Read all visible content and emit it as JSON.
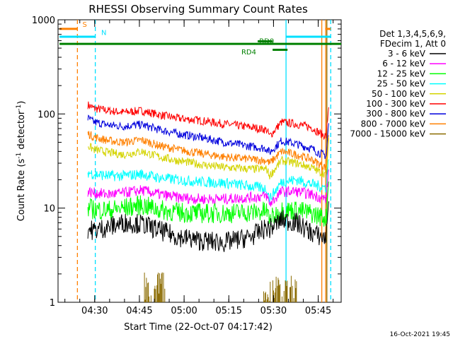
{
  "chart_data": {
    "type": "line",
    "title": "RHESSI Observing Summary Count Rates",
    "xlabel": "Start Time (22-Oct-07 04:17:42)",
    "ylabel_main": "Count Rate (s",
    "ylabel_sup1": "-1",
    "ylabel_mid": " detector",
    "ylabel_sup2": "-1",
    "ylabel_end": ")",
    "y_scale": "log",
    "ylim": [
      1,
      1000
    ],
    "xlim_minutes": [
      0,
      95
    ],
    "x_ticks": [
      {
        "minute": 12.3,
        "label": "04:30"
      },
      {
        "minute": 27.3,
        "label": "04:45"
      },
      {
        "minute": 42.3,
        "label": "05:00"
      },
      {
        "minute": 57.3,
        "label": "05:15"
      },
      {
        "minute": 72.3,
        "label": "05:30"
      },
      {
        "minute": 87.3,
        "label": "05:45"
      }
    ],
    "y_ticks": [
      {
        "value": 1,
        "label": "1"
      },
      {
        "value": 10,
        "label": "10"
      },
      {
        "value": 100,
        "label": "100"
      },
      {
        "value": 1000,
        "label": "1000"
      }
    ],
    "legend": {
      "placement": "right",
      "header1": "Det 1,3,4,5,6,9,",
      "header2": "FDecim 1, Att 0",
      "entries": [
        {
          "label": "3 - 6 keV",
          "color": "#000000"
        },
        {
          "label": "6 - 12 keV",
          "color": "#ff00ff"
        },
        {
          "label": "12 - 25 keV",
          "color": "#00ff00"
        },
        {
          "label": "25 - 50 keV",
          "color": "#00ffff"
        },
        {
          "label": "50 - 100 keV",
          "color": "#d4d400"
        },
        {
          "label": "100 - 300 keV",
          "color": "#ff0000"
        },
        {
          "label": "300 - 800 keV",
          "color": "#0000dd"
        },
        {
          "label": "800 - 7000 keV",
          "color": "#ff8000"
        },
        {
          "label": "7000 - 15000 keV",
          "color": "#8b6b00"
        }
      ]
    },
    "series": [
      {
        "color": "#ff0000",
        "x": [
          10,
          12,
          17,
          22,
          28,
          34,
          40,
          48,
          56,
          65,
          70,
          71,
          75,
          80,
          85,
          88,
          90,
          91
        ],
        "y": [
          125,
          115,
          108,
          104,
          108,
          98,
          90,
          85,
          78,
          72,
          68,
          58,
          82,
          78,
          72,
          62,
          58,
          145
        ]
      },
      {
        "color": "#0000dd",
        "x": [
          10,
          12,
          17,
          22,
          28,
          34,
          40,
          48,
          56,
          65,
          70,
          71,
          75,
          80,
          85,
          88,
          90,
          91
        ],
        "y": [
          90,
          82,
          76,
          74,
          77,
          68,
          62,
          56,
          50,
          45,
          43,
          39,
          52,
          48,
          43,
          38,
          36,
          95
        ]
      },
      {
        "color": "#ff8000",
        "x": [
          10,
          12,
          17,
          22,
          28,
          34,
          40,
          48,
          56,
          65,
          70,
          71,
          75,
          80,
          85,
          88,
          90,
          91
        ],
        "y": [
          62,
          57,
          52,
          50,
          53,
          46,
          42,
          38,
          35,
          33,
          32,
          30,
          40,
          37,
          33,
          29,
          27,
          75
        ]
      },
      {
        "color": "#d4d400",
        "x": [
          10,
          12,
          17,
          22,
          28,
          34,
          40,
          48,
          56,
          65,
          70,
          71,
          75,
          80,
          85,
          88,
          90,
          91
        ],
        "y": [
          46,
          42,
          39,
          37,
          40,
          35,
          32,
          29,
          27,
          26,
          26,
          22,
          32,
          30,
          27,
          24,
          23,
          60
        ]
      },
      {
        "color": "#00ffff",
        "x": [
          10,
          12,
          17,
          22,
          28,
          34,
          40,
          48,
          56,
          65,
          70,
          71,
          75,
          80,
          85,
          88,
          90,
          91
        ],
        "y": [
          24,
          23,
          22,
          22,
          23,
          21,
          20,
          19,
          18.5,
          17,
          16,
          12.5,
          19,
          20,
          18,
          17,
          16.5,
          40
        ]
      },
      {
        "color": "#ff00ff",
        "x": [
          10,
          12,
          17,
          22,
          28,
          34,
          40,
          48,
          56,
          65,
          70,
          71,
          75,
          80,
          85,
          88,
          90,
          91
        ],
        "y": [
          15,
          14.5,
          14,
          14.5,
          15.5,
          14,
          13,
          12.5,
          12.5,
          13,
          13.5,
          11,
          15,
          15,
          14,
          13,
          12.5,
          30
        ]
      },
      {
        "color": "#00ff00",
        "x": [
          10,
          12,
          17,
          22,
          28,
          34,
          40,
          48,
          56,
          65,
          70,
          71,
          75,
          80,
          85,
          88,
          90,
          91
        ],
        "y": [
          10,
          9.7,
          9.5,
          10,
          10.8,
          9.6,
          9,
          8.8,
          8.8,
          9,
          9.3,
          7.5,
          9.5,
          9.5,
          8.8,
          8.2,
          7.8,
          24
        ]
      },
      {
        "color": "#000000",
        "x": [
          10,
          12,
          17,
          22,
          28,
          34,
          40,
          48,
          56,
          65,
          70,
          71,
          75,
          80,
          85,
          88,
          90,
          91
        ],
        "y": [
          6,
          5.8,
          6.3,
          7,
          6.8,
          5.8,
          5,
          4.5,
          4.3,
          5,
          6.2,
          6,
          7.5,
          7,
          5.5,
          5,
          4.8,
          18
        ]
      }
    ],
    "noise_amplitude": 0.045,
    "data_gap_minutes": [
      12.5,
      70.5
    ],
    "brown_bursts": [
      [
        29,
        36
      ],
      [
        69,
        80
      ]
    ],
    "brown_burst_color": "#8b6b00",
    "vlines": [
      {
        "minute": 6.5,
        "color": "#ff8000",
        "dash": true
      },
      {
        "minute": 12.5,
        "color": "#00e0ff",
        "dash": true
      },
      {
        "minute": 76.5,
        "color": "#00e0ff",
        "dash": false
      },
      {
        "minute": 88.5,
        "color": "#ff8000",
        "dash": false
      },
      {
        "minute": 89.8,
        "color": "#ff8000",
        "dash": false
      },
      {
        "minute": 91.5,
        "color": "#00e0ff",
        "dash": true
      },
      {
        "minute": 90.2,
        "color": "#8b6b00",
        "dash": false
      }
    ],
    "flags": [
      {
        "label": "S",
        "x0": 0.5,
        "x1": 6.5,
        "yv": 800,
        "color": "#ff8000",
        "text_minute": 8.2,
        "text_yv": 840
      },
      {
        "label": "N",
        "x0": 0.5,
        "x1": 12.5,
        "yv": 660,
        "color": "#00e0ff",
        "text_minute": 14.5,
        "text_yv": 690
      },
      {
        "label": "",
        "x0": 0.5,
        "x1": 95,
        "yv": 555,
        "color": "#008000",
        "text_minute": 0,
        "text_yv": 0
      },
      {
        "label": "RD0",
        "x0": 67,
        "x1": 72,
        "yv": 590,
        "color": "#008000",
        "text_minute": 67.5,
        "text_yv": 560
      },
      {
        "label": "RD4",
        "x0": 72,
        "x1": 77,
        "yv": 480,
        "color": "#008000",
        "text_minute": 61.5,
        "text_yv": 430
      },
      {
        "label": "",
        "x0": 76.5,
        "x1": 91.5,
        "yv": 660,
        "color": "#00e0ff",
        "text_minute": 0,
        "text_yv": 0
      },
      {
        "label": "",
        "x0": 89.8,
        "x1": 91.5,
        "yv": 800,
        "color": "#ff8000",
        "text_minute": 0,
        "text_yv": 0
      }
    ],
    "footer_timestamp": "16-Oct-2021 19:45"
  }
}
